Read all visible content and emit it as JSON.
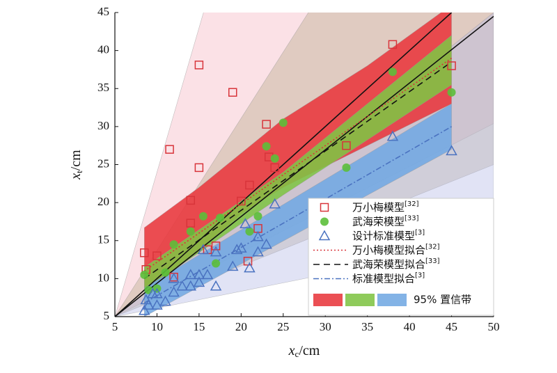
{
  "chart_data": {
    "type": "scatter",
    "xlabel": {
      "var": "x",
      "sub": "c",
      "unit": "/cm"
    },
    "ylabel": {
      "var": "x",
      "sub": "t",
      "unit": "/cm"
    },
    "xlim": [
      5,
      50
    ],
    "ylim": [
      5,
      45
    ],
    "xticks": [
      5,
      10,
      15,
      20,
      25,
      30,
      35,
      40,
      45,
      50
    ],
    "yticks": [
      5,
      10,
      15,
      20,
      25,
      30,
      35,
      40,
      45
    ],
    "series": [
      {
        "name": "万小梅模型",
        "ref": "[32]",
        "marker": "square",
        "color": "#d8343a",
        "x": [
          8.5,
          8.7,
          10,
          11.5,
          12,
          14,
          14,
          15,
          15,
          16,
          17,
          19,
          20,
          20.8,
          21,
          22,
          23,
          23.3,
          24,
          32.5,
          38,
          45
        ],
        "values": [
          13.4,
          11.2,
          13,
          27,
          10.2,
          20.3,
          17.3,
          24.6,
          38.1,
          13.8,
          14.3,
          34.5,
          20.2,
          12.3,
          22.3,
          16.6,
          30.3,
          26,
          24.6,
          27.5,
          40.8,
          38
        ]
      },
      {
        "name": "武海荣模型",
        "ref": "[33]",
        "marker": "circle",
        "color": "#5cbf3a",
        "x": [
          8.5,
          9,
          10,
          11,
          12,
          14,
          15.5,
          17,
          17.5,
          21,
          22,
          23,
          24,
          25,
          32.5,
          38,
          45
        ],
        "values": [
          10.5,
          8.5,
          8.7,
          10.8,
          14.5,
          16.2,
          18.2,
          12,
          18,
          16.2,
          18.2,
          27.4,
          25.8,
          30.5,
          24.6,
          37.2,
          34.5
        ]
      },
      {
        "name": "设计标准模型",
        "ref": "[3]",
        "marker": "triangle",
        "color": "#4a72c0",
        "x": [
          8.5,
          8.7,
          9,
          9.5,
          10,
          10,
          11,
          12,
          12,
          13,
          14,
          14,
          15,
          15,
          15.5,
          16,
          17,
          17,
          19,
          19.5,
          20,
          20.5,
          21,
          22,
          22,
          23,
          24,
          38,
          45
        ],
        "values": [
          5.8,
          7.2,
          6.5,
          8,
          6.5,
          8,
          7,
          8.2,
          10,
          9,
          10.5,
          9,
          10.5,
          9.5,
          13.8,
          10.5,
          9,
          13.5,
          11.6,
          13.8,
          14,
          17.2,
          11.4,
          13.5,
          15.5,
          14.5,
          19.8,
          28.7,
          26.8
        ]
      }
    ],
    "fits": [
      {
        "name": "万小梅模型拟合",
        "ref": "[32]",
        "color": "#d8343a",
        "dash": "2 3",
        "x": [
          8.5,
          45
        ],
        "values": [
          11,
          39
        ]
      },
      {
        "name": "武海荣模型拟合",
        "ref": "[33]",
        "color": "#111111",
        "dash": "9 6",
        "x": [
          8.5,
          45
        ],
        "values": [
          10,
          38.5
        ]
      },
      {
        "name": "标准模型拟合",
        "ref": "[3]",
        "color": "#4a72c0",
        "dash": "8 3 2 3",
        "x": [
          8.5,
          45
        ],
        "values": [
          6.8,
          30
        ]
      }
    ],
    "reference_lines": [
      {
        "color": "#111111",
        "x": [
          5,
          45
        ],
        "values": [
          5,
          45
        ]
      },
      {
        "color": "#111111",
        "x": [
          5,
          50
        ],
        "values": [
          5,
          44.5
        ]
      }
    ],
    "prediction_bands": [
      {
        "color": "#f4b3c0",
        "x": [
          5,
          50
        ],
        "lower": [
          5,
          30.4
        ],
        "upper": [
          5,
          176
        ]
      },
      {
        "color": "#b9ab8a",
        "x": [
          5,
          50
        ],
        "lower": [
          5,
          25
        ],
        "upper": [
          5,
          83.3
        ]
      },
      {
        "color": "#b4b9e6",
        "x": [
          5,
          50
        ],
        "lower": [
          5,
          15
        ],
        "upper": [
          5,
          45
        ]
      }
    ],
    "confidence_bands": [
      {
        "color": "#e8373c",
        "x": [
          8.5,
          15,
          20,
          25,
          35,
          45
        ],
        "lower": [
          8.5,
          13.5,
          18.5,
          22,
          27.5,
          33
        ],
        "upper": [
          16.7,
          22,
          26.5,
          31,
          38,
          46
        ]
      },
      {
        "color": "#80c444",
        "x": [
          8.5,
          25,
          45
        ],
        "lower": [
          8.5,
          21,
          35.5
        ],
        "upper": [
          11.5,
          24,
          42
        ]
      },
      {
        "color": "#72a8e2",
        "x": [
          8.5,
          45
        ],
        "lower": [
          5,
          27
        ],
        "upper": [
          8.8,
          33
        ]
      }
    ],
    "band_legend_label": "95% 置信带"
  }
}
